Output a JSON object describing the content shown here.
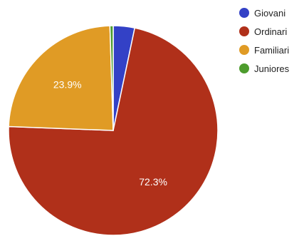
{
  "chart_data": {
    "type": "pie",
    "categories": [
      "Giovani",
      "Ordinari",
      "Familiari",
      "Juniores"
    ],
    "values": [
      3.3,
      72.3,
      23.9,
      0.5
    ],
    "data_labels": [
      "",
      "72.3%",
      "23.9%",
      ""
    ],
    "colors": [
      "#3341c6",
      "#b0301a",
      "#e09b25",
      "#4d9c2d"
    ],
    "legend_position": "right",
    "start_angle_deg": 0,
    "direction": "clockwise"
  }
}
